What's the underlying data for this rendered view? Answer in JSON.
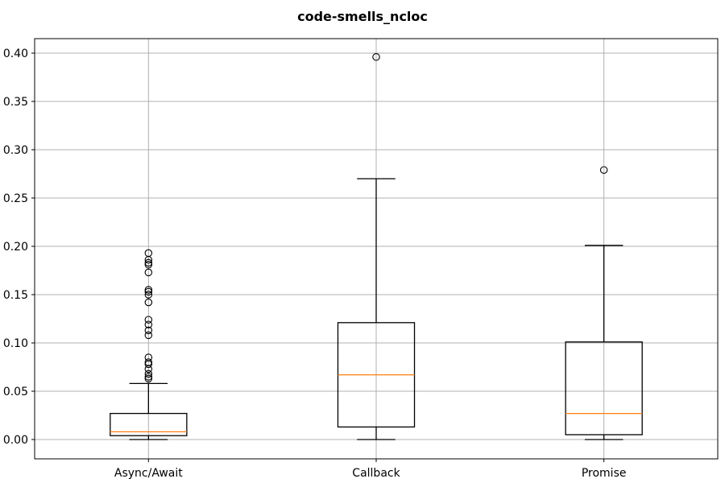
{
  "chart_data": {
    "type": "box",
    "title": "code-smells_ncloc",
    "xlabel": "",
    "ylabel": "",
    "ylim": [
      -0.02,
      0.415
    ],
    "yticks": [
      0.0,
      0.05,
      0.1,
      0.15,
      0.2,
      0.25,
      0.3,
      0.35,
      0.4
    ],
    "ytick_labels": [
      "0.00",
      "0.05",
      "0.10",
      "0.15",
      "0.20",
      "0.25",
      "0.30",
      "0.35",
      "0.40"
    ],
    "grid": true,
    "categories": [
      "Async/Await",
      "Callback",
      "Promise"
    ],
    "boxes": [
      {
        "label": "Async/Await",
        "whisker_low": 0.0,
        "q1": 0.004,
        "median": 0.008,
        "q3": 0.027,
        "whisker_high": 0.058,
        "fliers": [
          0.063,
          0.065,
          0.068,
          0.073,
          0.078,
          0.08,
          0.085,
          0.108,
          0.113,
          0.119,
          0.124,
          0.142,
          0.15,
          0.153,
          0.155,
          0.173,
          0.181,
          0.183,
          0.186,
          0.193
        ]
      },
      {
        "label": "Callback",
        "whisker_low": 0.0,
        "q1": 0.013,
        "median": 0.067,
        "q3": 0.121,
        "whisker_high": 0.27,
        "fliers": [
          0.396
        ]
      },
      {
        "label": "Promise",
        "whisker_low": 0.0,
        "q1": 0.005,
        "median": 0.027,
        "q3": 0.101,
        "whisker_high": 0.201,
        "fliers": [
          0.279
        ]
      }
    ],
    "colors": {
      "box": "#000000",
      "median": "#ff7f0e",
      "grid": "#b0b0b0",
      "background": "#ffffff"
    }
  }
}
